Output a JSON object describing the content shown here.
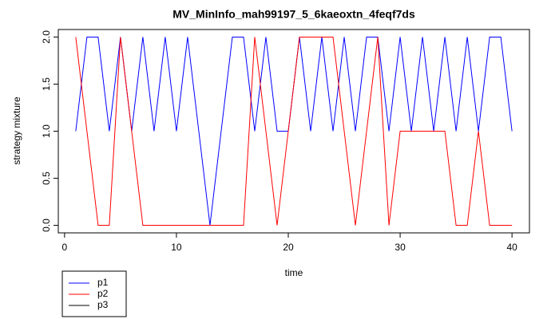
{
  "chart_data": {
    "type": "line",
    "title": "MV_MinInfo_mah99197_5_6kaeoxtn_4feqf7ds",
    "x_label": "time",
    "y_label": "strategy mixture",
    "x": [
      1,
      2,
      3,
      4,
      5,
      6,
      7,
      8,
      9,
      10,
      11,
      12,
      13,
      14,
      15,
      16,
      17,
      18,
      19,
      20,
      21,
      22,
      23,
      24,
      25,
      26,
      27,
      28,
      29,
      30,
      31,
      32,
      33,
      34,
      35,
      36,
      37,
      38,
      39,
      40
    ],
    "series": [
      {
        "name": "p1",
        "color": "#0000ff",
        "values": [
          1,
          2,
          2,
          1,
          2,
          1,
          2,
          1,
          2,
          1,
          2,
          1,
          0,
          1,
          2,
          2,
          1,
          2,
          1,
          1,
          2,
          1,
          2,
          1,
          2,
          1,
          2,
          2,
          1,
          2,
          1,
          2,
          1,
          2,
          1,
          2,
          1,
          2,
          2,
          1
        ]
      },
      {
        "name": "p2",
        "color": "#ff0000",
        "values": [
          2,
          1,
          0,
          0,
          2,
          1,
          0,
          0,
          0,
          0,
          0,
          0,
          0,
          0,
          0,
          0,
          2,
          1,
          0,
          1,
          2,
          2,
          2,
          2,
          1,
          0,
          1,
          2,
          0,
          1,
          1,
          1,
          1,
          1,
          0,
          0,
          1,
          0,
          0,
          0
        ]
      },
      {
        "name": "p3",
        "color": "#000000",
        "values": [
          null,
          null,
          null,
          null,
          null,
          null,
          null,
          null,
          null,
          null,
          null,
          null,
          null,
          null,
          null,
          null,
          null,
          null,
          null,
          null,
          null,
          null,
          null,
          null,
          null,
          null,
          null,
          null,
          null,
          null,
          null,
          null,
          null,
          null,
          null,
          null,
          null,
          null,
          null,
          null
        ]
      }
    ],
    "xlim": [
      -0.56,
      41.56
    ],
    "ylim": [
      -0.08,
      2.08
    ],
    "xticks": [
      0,
      10,
      20,
      30,
      40
    ],
    "yticks": [
      {
        "value": 0,
        "label": "0.0"
      },
      {
        "value": 0.5,
        "label": "0.5"
      },
      {
        "value": 1,
        "label": "1.0"
      },
      {
        "value": 1.5,
        "label": "1.5"
      },
      {
        "value": 2,
        "label": "2.0"
      }
    ],
    "grid": false,
    "legend": "bottom-left"
  }
}
